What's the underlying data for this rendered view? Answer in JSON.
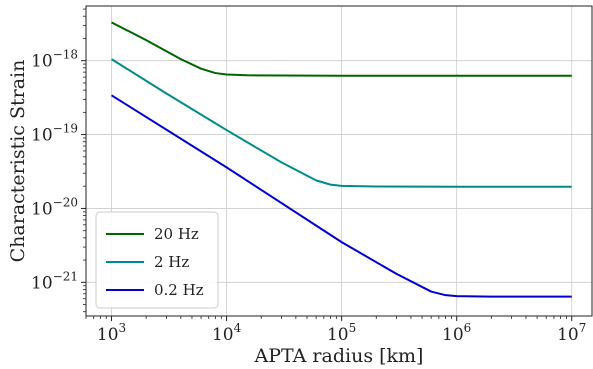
{
  "chart_data": {
    "type": "line",
    "title": "",
    "xlabel": "APTA radius [km]",
    "ylabel": "Characteristic Strain",
    "x_scale": "log",
    "y_scale": "log",
    "xlim": [
      600,
      15000000
    ],
    "ylim": [
      3.5e-22,
      5.5e-18
    ],
    "x_ticks": [
      1000,
      10000,
      100000,
      1000000,
      10000000
    ],
    "x_tick_labels": [
      {
        "base": "10",
        "exp": "3"
      },
      {
        "base": "10",
        "exp": "4"
      },
      {
        "base": "10",
        "exp": "5"
      },
      {
        "base": "10",
        "exp": "6"
      },
      {
        "base": "10",
        "exp": "7"
      }
    ],
    "y_ticks": [
      1e-21,
      1e-20,
      1e-19,
      1e-18
    ],
    "y_tick_labels": [
      {
        "base": "10",
        "exp": "−21"
      },
      {
        "base": "10",
        "exp": "−20"
      },
      {
        "base": "10",
        "exp": "−19"
      },
      {
        "base": "10",
        "exp": "−18"
      }
    ],
    "grid": true,
    "legend_position": "lower-left",
    "series": [
      {
        "name": "20 Hz",
        "color": "#006400",
        "points": [
          [
            1000,
            3.3e-18
          ],
          [
            2000,
            1.9e-18
          ],
          [
            4000,
            1.05e-18
          ],
          [
            6000,
            7.8e-19
          ],
          [
            8000,
            6.8e-19
          ],
          [
            10000,
            6.5e-19
          ],
          [
            15000,
            6.35e-19
          ],
          [
            30000,
            6.3e-19
          ],
          [
            100000,
            6.25e-19
          ],
          [
            1000000,
            6.25e-19
          ],
          [
            10000000,
            6.25e-19
          ]
        ]
      },
      {
        "name": "2 Hz",
        "color": "#008b8b",
        "points": [
          [
            1000,
            1.05e-18
          ],
          [
            3000,
            3.6e-19
          ],
          [
            10000,
            1.15e-19
          ],
          [
            30000,
            4.2e-20
          ],
          [
            60000,
            2.4e-20
          ],
          [
            80000,
            2.1e-20
          ],
          [
            100000,
            2.02e-20
          ],
          [
            200000,
            1.98e-20
          ],
          [
            1000000,
            1.97e-20
          ],
          [
            10000000,
            1.97e-20
          ]
        ]
      },
      {
        "name": "0.2 Hz",
        "color": "#0000cd",
        "points": [
          [
            1000,
            3.4e-19
          ],
          [
            10000,
            3.6e-20
          ],
          [
            100000,
            3.5e-21
          ],
          [
            300000,
            1.3e-21
          ],
          [
            600000,
            7.5e-22
          ],
          [
            800000,
            6.7e-22
          ],
          [
            1000000,
            6.5e-22
          ],
          [
            2000000,
            6.4e-22
          ],
          [
            10000000,
            6.4e-22
          ]
        ]
      }
    ]
  }
}
